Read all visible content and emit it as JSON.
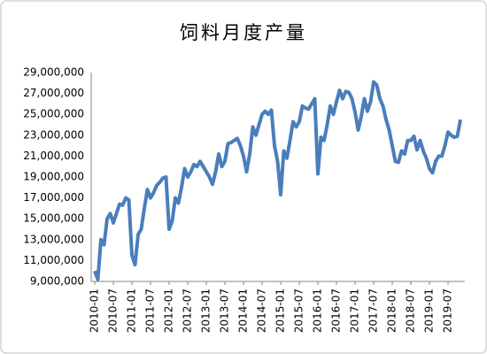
{
  "chart_data": {
    "type": "line",
    "title": "饲料月度产量",
    "categories": [
      "2010-01",
      null,
      null,
      null,
      null,
      null,
      "2010-07",
      null,
      null,
      null,
      null,
      null,
      "2011-01",
      null,
      null,
      null,
      null,
      null,
      "2011-07",
      null,
      null,
      null,
      null,
      null,
      "2012-01",
      null,
      null,
      null,
      null,
      null,
      "2012-07",
      null,
      null,
      null,
      null,
      null,
      "2013-01",
      null,
      null,
      null,
      null,
      null,
      "2013-07",
      null,
      null,
      null,
      null,
      null,
      "2014-01",
      null,
      null,
      null,
      null,
      null,
      "2014-07",
      null,
      null,
      null,
      null,
      null,
      "2015-01",
      null,
      null,
      null,
      null,
      null,
      "2015-07",
      null,
      null,
      null,
      null,
      null,
      "2016-01",
      null,
      null,
      null,
      null,
      null,
      "2016-07",
      null,
      null,
      null,
      null,
      null,
      "2017-01",
      null,
      null,
      null,
      null,
      null,
      "2017-07",
      null,
      null,
      null,
      null,
      null,
      "2018-01",
      null,
      null,
      null,
      null,
      null,
      "2018-07",
      null,
      null,
      null,
      null,
      null,
      "2019-01",
      null,
      null,
      null,
      null,
      null,
      "2019-07",
      null,
      null,
      null,
      null
    ],
    "series": [
      {
        "color": "#4a7ebb",
        "values": [
          10000000,
          9200000,
          13000000,
          12500000,
          15000000,
          15500000,
          14600000,
          15500000,
          16400000,
          16300000,
          17000000,
          16800000,
          11500000,
          10600000,
          13500000,
          14000000,
          16000000,
          17800000,
          17000000,
          17500000,
          18200000,
          18500000,
          18900000,
          19000000,
          14000000,
          14800000,
          17000000,
          16500000,
          18000000,
          19800000,
          19000000,
          19500000,
          20200000,
          20000000,
          20500000,
          20000000,
          19500000,
          19000000,
          18300000,
          19500000,
          21200000,
          20000000,
          20500000,
          22200000,
          22300000,
          22500000,
          22700000,
          22000000,
          21000000,
          19500000,
          21200000,
          23800000,
          23000000,
          24000000,
          25000000,
          25300000,
          25000000,
          25400000,
          22000000,
          20500000,
          17300000,
          21500000,
          20800000,
          22500000,
          24300000,
          23800000,
          24300000,
          25800000,
          25600000,
          25500000,
          26000000,
          26500000,
          19300000,
          22800000,
          22500000,
          24000000,
          25800000,
          25000000,
          26200000,
          27300000,
          26500000,
          27200000,
          27100000,
          26500000,
          25200000,
          23500000,
          24800000,
          26500000,
          25300000,
          26200000,
          28100000,
          27800000,
          26500000,
          25800000,
          24500000,
          23500000,
          22000000,
          20500000,
          20400000,
          21500000,
          21200000,
          22500000,
          22500000,
          22900000,
          21600000,
          22500000,
          21500000,
          20800000,
          19800000,
          19400000,
          20500000,
          21000000,
          21000000,
          22000000,
          23300000,
          23000000,
          22800000,
          22900000,
          24500000
        ]
      }
    ],
    "ylim": [
      9000000,
      29000000
    ],
    "yticks": [
      {
        "value": 9000000,
        "label": "9,000,000"
      },
      {
        "value": 11000000,
        "label": "11,000,000"
      },
      {
        "value": 13000000,
        "label": "13,000,000"
      },
      {
        "value": 15000000,
        "label": "15,000,000"
      },
      {
        "value": 17000000,
        "label": "17,000,000"
      },
      {
        "value": 19000000,
        "label": "19,000,000"
      },
      {
        "value": 21000000,
        "label": "21,000,000"
      },
      {
        "value": 23000000,
        "label": "23,000,000"
      },
      {
        "value": 25000000,
        "label": "25,000,000"
      },
      {
        "value": 27000000,
        "label": "27,000,000"
      },
      {
        "value": 29000000,
        "label": "29,000,000"
      }
    ],
    "grid": false
  }
}
